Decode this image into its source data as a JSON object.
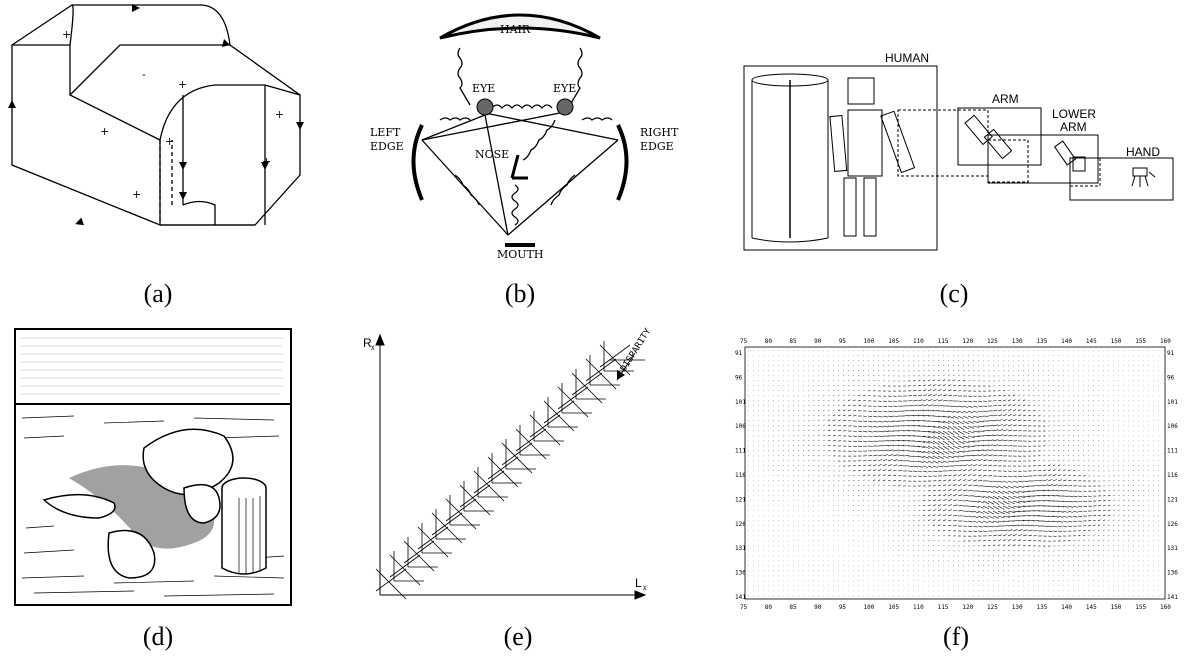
{
  "captions": [
    "(a)",
    "(b)",
    "(c)",
    "(d)",
    "(e)",
    "(f)"
  ],
  "panel_a": {
    "signs": [
      "+",
      "-",
      "+",
      "+",
      "+",
      "+",
      "+",
      "+"
    ]
  },
  "panel_b": {
    "hair": "HAIR",
    "eye_left": "EYE",
    "eye_right": "EYE",
    "left_edge_1": "LEFT",
    "left_edge_2": "EDGE",
    "right_edge_1": "RIGHT",
    "right_edge_2": "EDGE",
    "nose": "NOSE",
    "mouth": "MOUTH"
  },
  "panel_c": {
    "human": "HUMAN",
    "arm": "ARM",
    "lower_1": "LOWER",
    "lower_2": "ARM",
    "hand": "HAND"
  },
  "panel_e": {
    "y_label": "R",
    "y_sub": "X",
    "x_label": "L",
    "x_sub": "X",
    "arrow_label": "DISPARITY"
  },
  "panel_f": {
    "x_ticks": [
      "75",
      "80",
      "85",
      "90",
      "95",
      "100",
      "105",
      "110",
      "115",
      "120",
      "125",
      "130",
      "135",
      "140",
      "145",
      "150",
      "155",
      "160"
    ],
    "y_ticks": [
      "91",
      "96",
      "101",
      "106",
      "111",
      "116",
      "121",
      "126",
      "131",
      "136",
      "141"
    ]
  }
}
